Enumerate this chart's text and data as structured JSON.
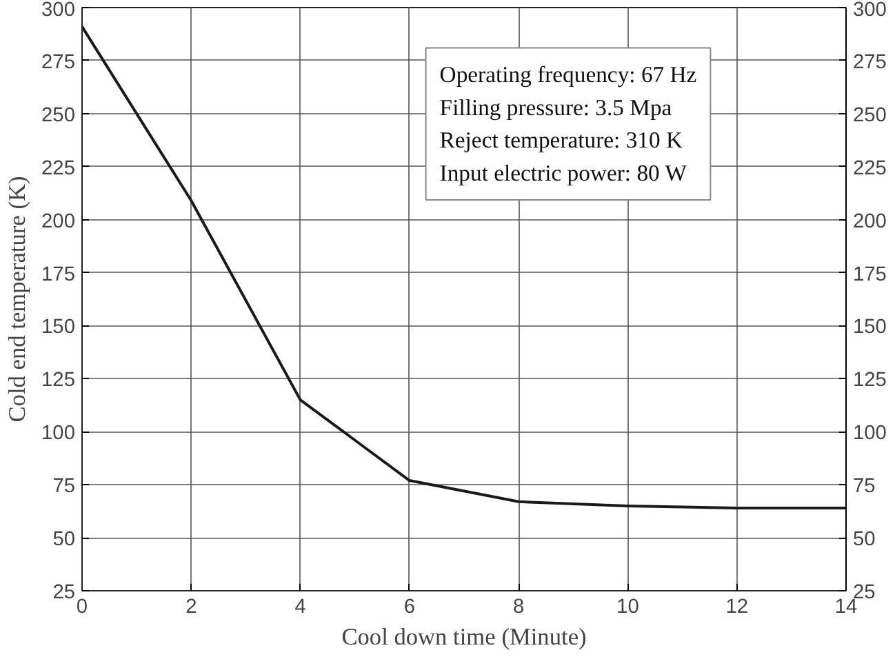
{
  "chart_data": {
    "type": "line",
    "xlabel": "Cool down time (Minute)",
    "ylabel": "Cold end temperature (K)",
    "x": [
      0,
      2,
      4,
      6,
      8,
      10,
      12,
      14
    ],
    "series": [
      {
        "color": "#1a1a1a",
        "values": [
          291,
          209,
          115,
          77,
          67,
          65,
          64,
          64
        ]
      }
    ],
    "xlim": [
      0,
      14
    ],
    "xticks": [
      0,
      2,
      4,
      6,
      8,
      10,
      12,
      14
    ],
    "ylim": [
      25,
      300
    ],
    "yticks": [
      25,
      50,
      75,
      100,
      125,
      150,
      175,
      200,
      225,
      250,
      275,
      300
    ],
    "y2lim": [
      25,
      300
    ],
    "y2ticks": [
      25,
      50,
      75,
      100,
      125,
      150,
      175,
      200,
      225,
      250,
      275,
      300
    ],
    "grid": true,
    "marker": "none",
    "line_style": "solid",
    "annotations": [
      "Operating frequency: 67 Hz",
      "Filling pressure: 3.5 Mpa",
      "Reject temperature: 310 K",
      "Input electric power: 80 W"
    ]
  }
}
